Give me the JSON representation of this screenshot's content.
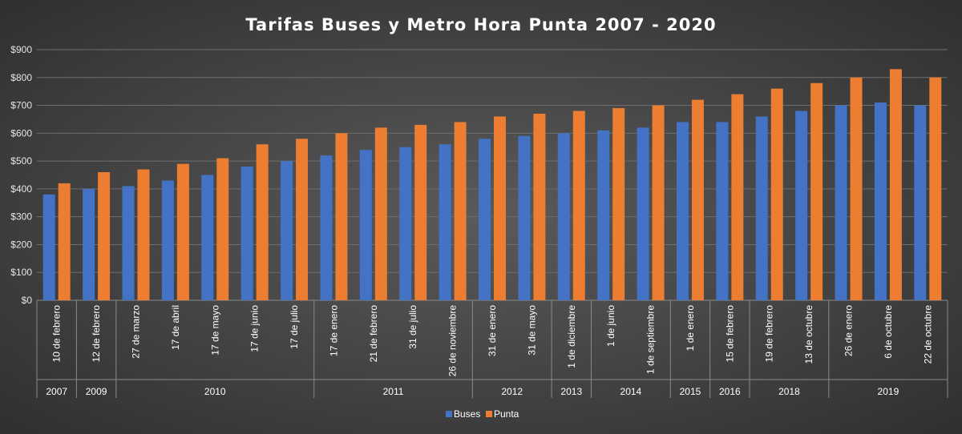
{
  "chart_data": {
    "type": "bar",
    "title": "Tarifas Buses y Metro Hora Punta 2007 - 2020",
    "xlabel": "",
    "ylabel": "",
    "ylim": [
      0,
      900
    ],
    "yticks": [
      0,
      100,
      200,
      300,
      400,
      500,
      600,
      700,
      800,
      900
    ],
    "ytick_labels": [
      "$0",
      "$100",
      "$200",
      "$300",
      "$400",
      "$500",
      "$600",
      "$700",
      "$800",
      "$900"
    ],
    "grid": true,
    "legend_position": "bottom",
    "categories": [
      "10 de febrero",
      "12 de febrero",
      "27 de marzo",
      "17 de abril",
      "17 de mayo",
      "17 de junio",
      "17 de julio",
      "17 de enero",
      "21 de febrero",
      "31 de julio",
      "26 de noviembre",
      "31 de enero",
      "31 de mayo",
      "1 de diciembre",
      "1 de junio",
      "1 de septiembre",
      "1 de enero",
      "15 de febrero",
      "19 de febrero",
      "13 de octubre",
      "26 de enero",
      "6 de octubre",
      "22 de octubre"
    ],
    "year_groups": [
      {
        "label": "2007",
        "count": 1
      },
      {
        "label": "2009",
        "count": 1
      },
      {
        "label": "2010",
        "count": 5
      },
      {
        "label": "2011",
        "count": 4
      },
      {
        "label": "2012",
        "count": 2
      },
      {
        "label": "2013",
        "count": 1
      },
      {
        "label": "2014",
        "count": 2
      },
      {
        "label": "2015",
        "count": 1
      },
      {
        "label": "2016",
        "count": 1
      },
      {
        "label": "2018",
        "count": 2
      },
      {
        "label": "2019",
        "count": 3
      }
    ],
    "series": [
      {
        "name": "Buses",
        "color": "#4472c4",
        "values": [
          380,
          400,
          410,
          430,
          450,
          480,
          500,
          520,
          540,
          550,
          560,
          580,
          590,
          600,
          610,
          620,
          640,
          640,
          660,
          680,
          700,
          710,
          700
        ]
      },
      {
        "name": "Punta",
        "color": "#ed7d31",
        "values": [
          420,
          460,
          470,
          490,
          510,
          560,
          580,
          600,
          620,
          630,
          640,
          660,
          670,
          680,
          690,
          700,
          720,
          740,
          760,
          780,
          800,
          830,
          800
        ]
      }
    ]
  }
}
